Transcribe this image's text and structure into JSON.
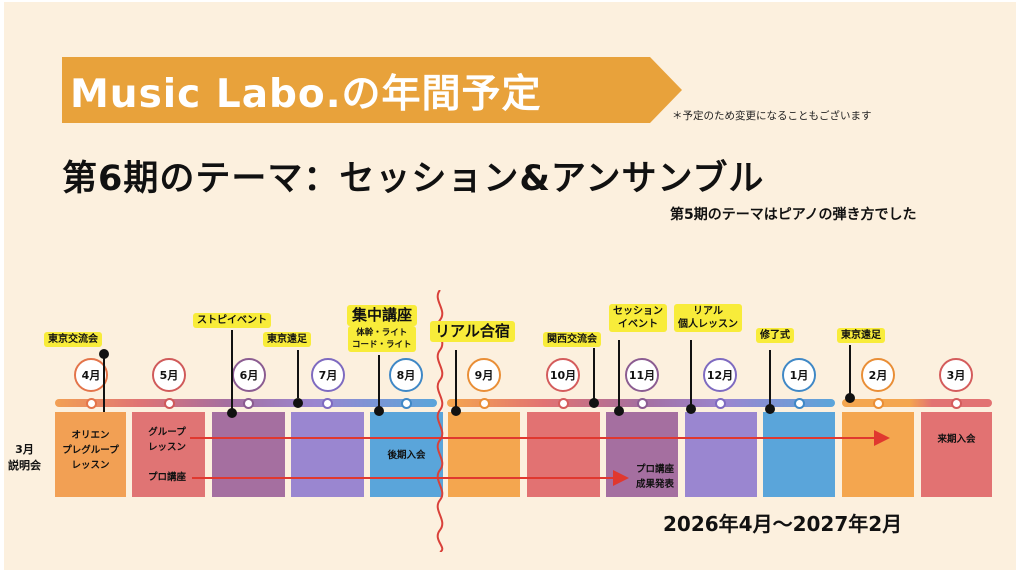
{
  "banner": {
    "title": "Music Labo.の年間予定",
    "color": "#e8a23b"
  },
  "note": "＊予定のため変更になることもございます",
  "theme": "第6期のテーマ：セッション&アンサンブル",
  "previous_theme": "第5期のテーマはピアノの弾き方でした",
  "side_label": "3月\n説明会",
  "period": "2026年4月〜2027年2月",
  "months": [
    {
      "label": "4月",
      "color": "#f2a054",
      "ring": "#e3744a"
    },
    {
      "label": "5月",
      "color": "#e07474",
      "ring": "#d05a5a"
    },
    {
      "label": "6月",
      "color": "#a56fa0",
      "ring": "#8b5c91"
    },
    {
      "label": "7月",
      "color": "#9a86d0",
      "ring": "#7e6ac0"
    },
    {
      "label": "8月",
      "color": "#5aa5da",
      "ring": "#3f88c6"
    },
    {
      "label": "9月",
      "color": "#f4a64f",
      "ring": "#e98e36"
    },
    {
      "label": "10月",
      "color": "#e27272",
      "ring": "#d45c5c"
    },
    {
      "label": "11月",
      "color": "#a56fa0",
      "ring": "#8b5c91"
    },
    {
      "label": "12月",
      "color": "#9a86d0",
      "ring": "#7e6ac0"
    },
    {
      "label": "1月",
      "color": "#5aa5da",
      "ring": "#3f88c6"
    },
    {
      "label": "2月",
      "color": "#f4a64f",
      "ring": "#e98e36"
    },
    {
      "label": "3月",
      "color": "#e27272",
      "ring": "#d45c5c"
    }
  ],
  "events": {
    "tokyo_meetup": "東京交流会",
    "street_piano": "ストピイベント",
    "tokyo_excursion_1": "東京遠足",
    "intensive": "集中講座",
    "intensive_sub": "体幹・ライト\nコード・ライト",
    "real_camp": "リアル合宿",
    "kansai_meetup": "関西交流会",
    "session_event": "セッション\nイベント",
    "real_lesson": "リアル\n個人レッスン",
    "completion": "修了式",
    "tokyo_excursion_2": "東京遠足"
  },
  "blocks": {
    "orientation": "オリエン\nプレグループ\nレッスン",
    "group_lesson": "グループ\nレッスン",
    "pro_course": "プロ講座",
    "second_term": "後期入会",
    "pro_result": "プロ講座\n成果発表",
    "next_term": "来期入会"
  },
  "arrow_color": "#e0382f"
}
